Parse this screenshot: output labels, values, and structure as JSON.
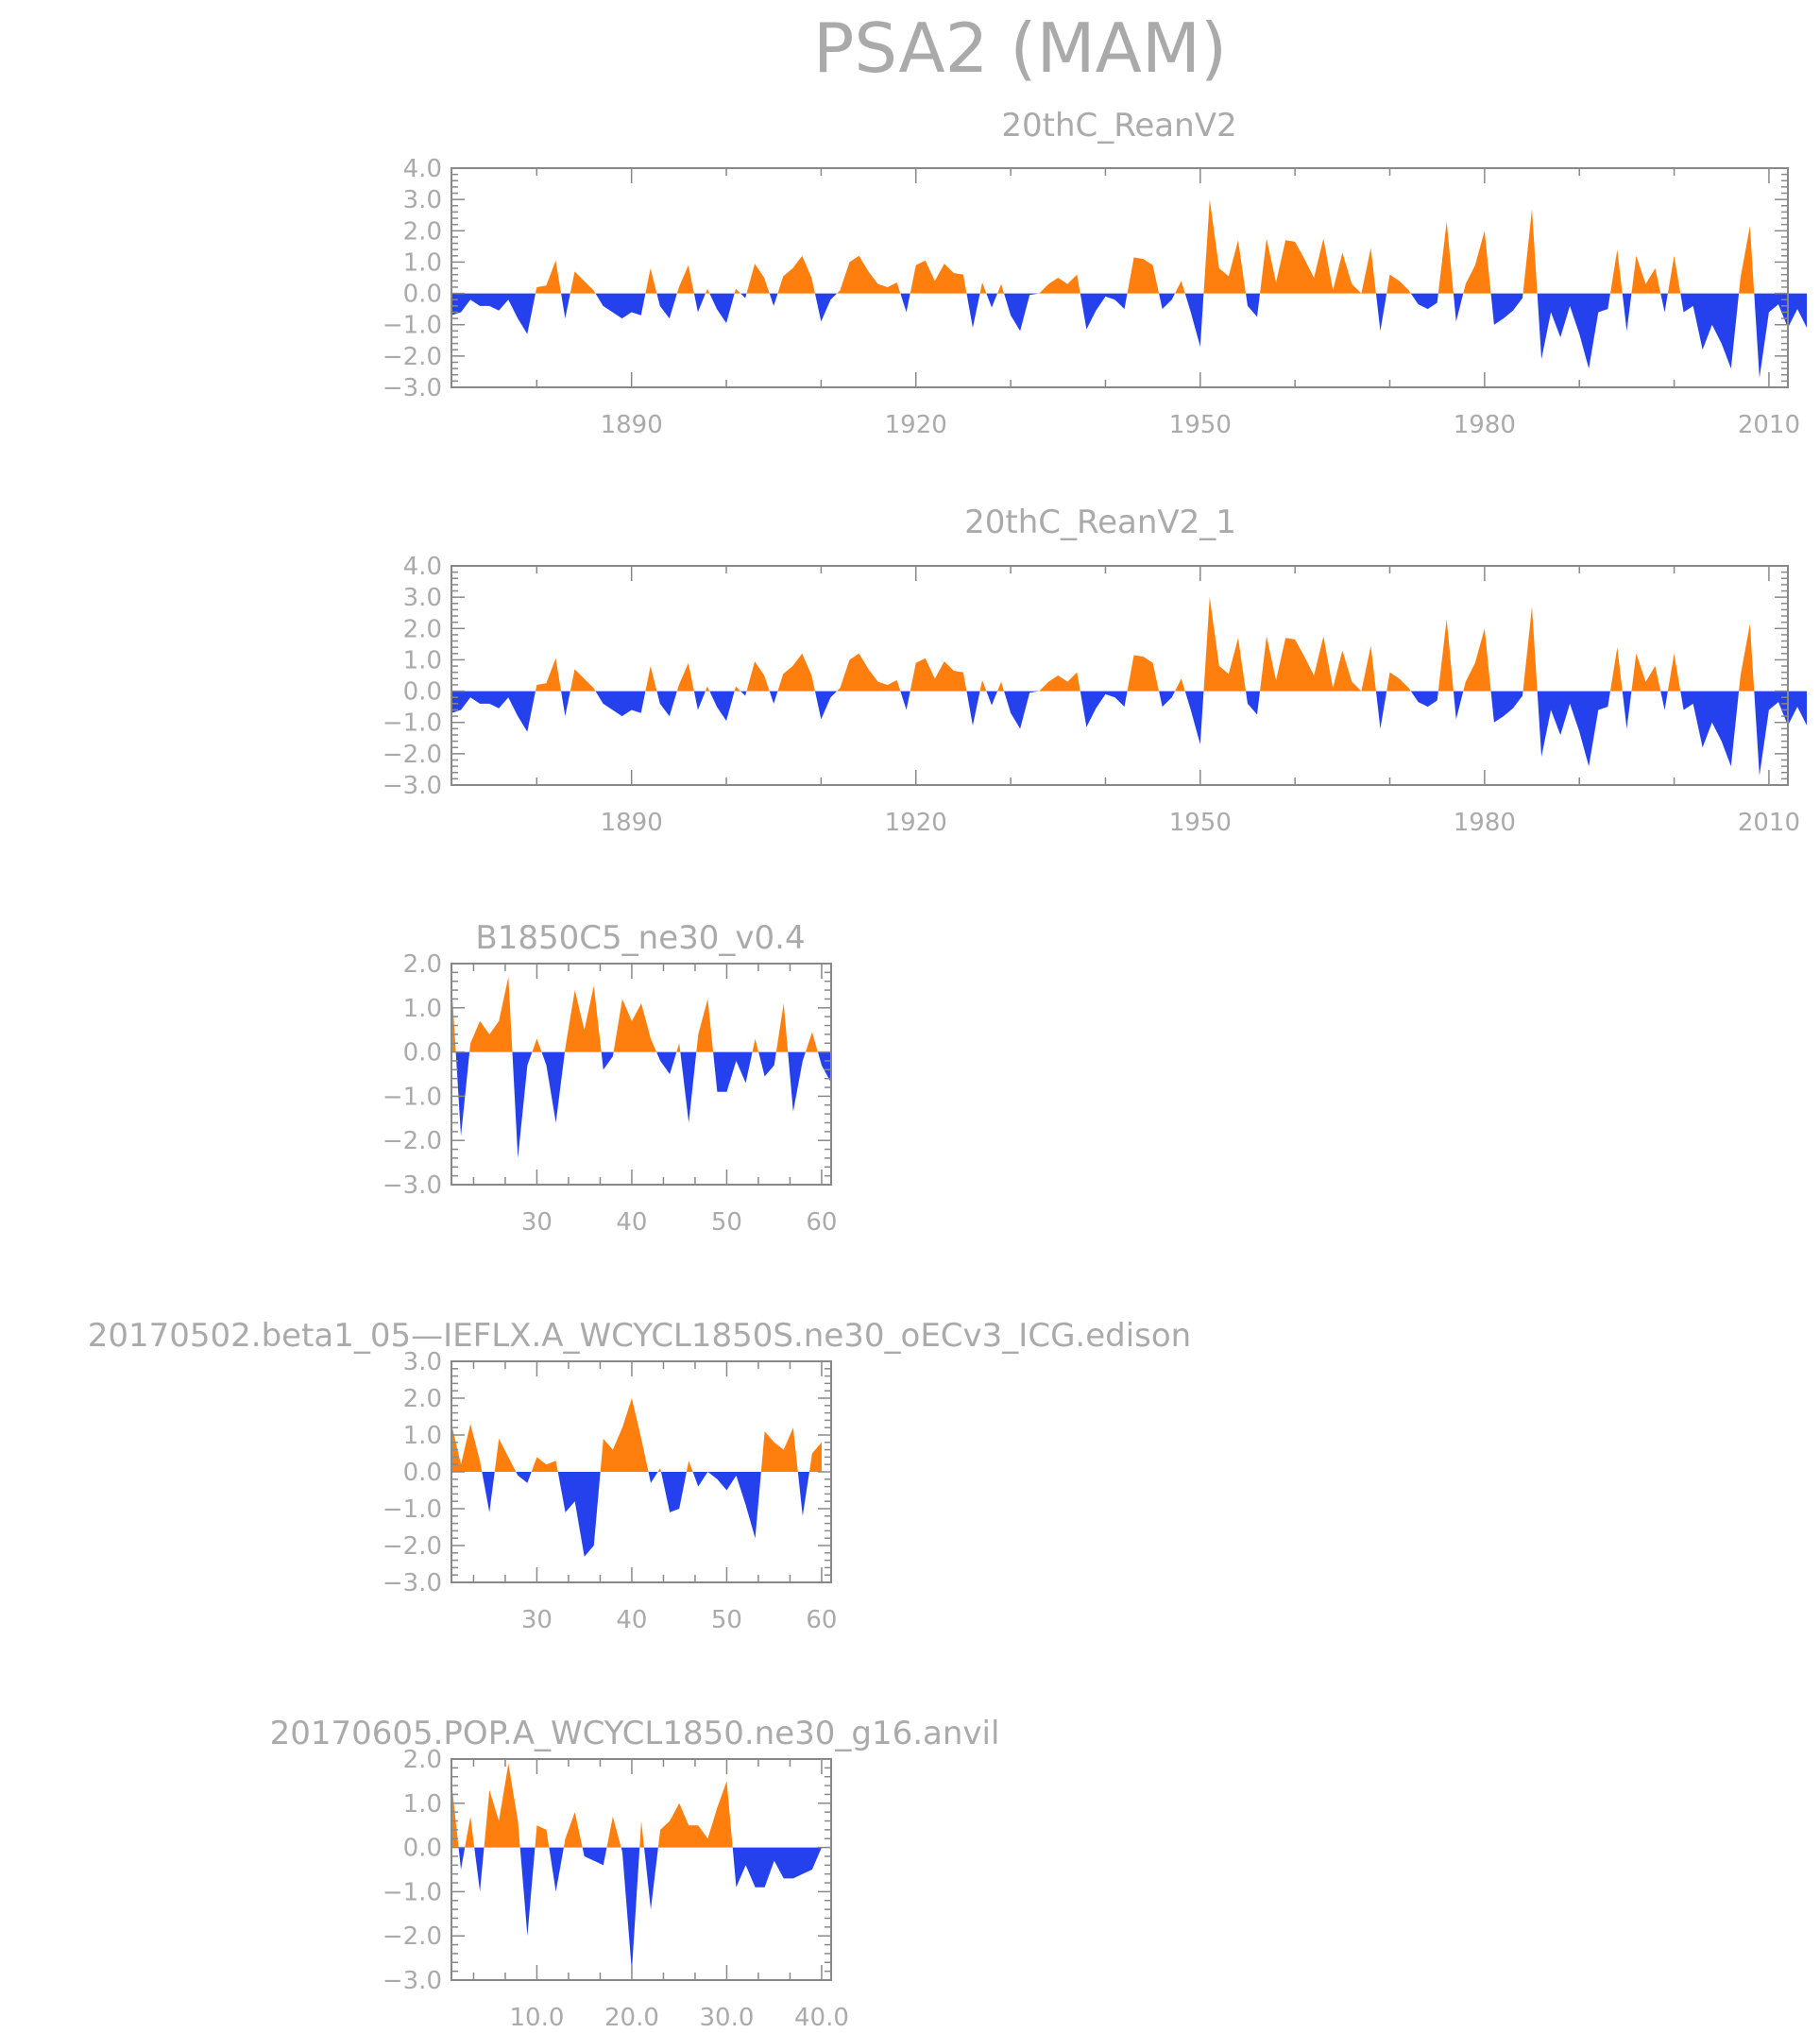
{
  "figure_title": "PSA2 (MAM)",
  "colors": {
    "positive": "#ff7f0e",
    "negative": "#2541ee",
    "axis": "#888888",
    "text": "#aaaaaa"
  },
  "chart_data": [
    {
      "type": "area",
      "title": "20thC_ReanV2",
      "xlabel": "",
      "ylabel": "",
      "xlim": [
        1871,
        2012
      ],
      "ylim": [
        -3.0,
        4.0
      ],
      "xticks": [
        1890,
        1920,
        1950,
        1980,
        2010
      ],
      "xtick_labels": [
        "1890",
        "1920",
        "1950",
        "1980",
        "2010"
      ],
      "yticks": [
        4.0,
        3.0,
        2.0,
        1.0,
        0.0,
        -1.0,
        -2.0,
        -3.0
      ],
      "ytick_labels": [
        "4.0",
        "3.0",
        "2.0",
        "1.0",
        "0.0",
        "−1.0",
        "−2.0",
        "−3.0"
      ],
      "x_start": 1871,
      "values": [
        -0.7,
        -0.6,
        -0.2,
        -0.4,
        -0.4,
        -0.55,
        -0.2,
        -0.8,
        -1.3,
        0.2,
        0.25,
        1.05,
        -0.8,
        0.7,
        0.4,
        0.1,
        -0.4,
        -0.6,
        -0.8,
        -0.6,
        -0.7,
        0.8,
        -0.4,
        -0.8,
        0.2,
        0.9,
        -0.6,
        0.15,
        -0.5,
        -0.95,
        0.15,
        -0.15,
        0.95,
        0.5,
        -0.4,
        0.55,
        0.8,
        1.2,
        0.5,
        -0.9,
        -0.2,
        0.1,
        1.0,
        1.2,
        0.7,
        0.3,
        0.2,
        0.35,
        -0.6,
        0.9,
        1.05,
        0.4,
        0.95,
        0.65,
        0.6,
        -1.1,
        0.35,
        -0.45,
        0.3,
        -0.7,
        -1.2,
        -0.05,
        0.0,
        0.3,
        0.5,
        0.3,
        0.6,
        -1.15,
        -0.55,
        -0.1,
        -0.2,
        -0.5,
        1.15,
        1.1,
        0.9,
        -0.5,
        -0.2,
        0.4,
        -0.6,
        -1.7,
        3.0,
        0.8,
        0.55,
        1.7,
        -0.4,
        -0.75,
        1.75,
        0.35,
        1.7,
        1.65,
        1.1,
        0.5,
        1.75,
        0.1,
        1.3,
        0.3,
        0.0,
        1.45,
        -1.2,
        0.6,
        0.4,
        0.1,
        -0.35,
        -0.5,
        -0.3,
        2.3,
        -0.9,
        0.3,
        0.9,
        2.0,
        -1.0,
        -0.8,
        -0.55,
        -0.15,
        2.7,
        -2.1,
        -0.6,
        -1.4,
        -0.4,
        -1.3,
        -2.4,
        -0.6,
        -0.5,
        1.4,
        -1.2,
        1.2,
        0.3,
        0.8,
        -0.6,
        1.2,
        -0.6,
        -0.4,
        -1.8,
        -1.0,
        -1.6,
        -2.4,
        0.5,
        2.15,
        -2.7,
        -0.6,
        -0.35,
        -1.1,
        -0.5,
        -1.1
      ]
    },
    {
      "type": "area",
      "title": "20thC_ReanV2_1",
      "xlabel": "",
      "ylabel": "",
      "xlim": [
        1871,
        2012
      ],
      "ylim": [
        -3.0,
        4.0
      ],
      "xticks": [
        1890,
        1920,
        1950,
        1980,
        2010
      ],
      "xtick_labels": [
        "1890",
        "1920",
        "1950",
        "1980",
        "2010"
      ],
      "yticks": [
        4.0,
        3.0,
        2.0,
        1.0,
        0.0,
        -1.0,
        -2.0,
        -3.0
      ],
      "ytick_labels": [
        "4.0",
        "3.0",
        "2.0",
        "1.0",
        "0.0",
        "−1.0",
        "−2.0",
        "−3.0"
      ],
      "x_start": 1871,
      "values": [
        -0.7,
        -0.6,
        -0.2,
        -0.4,
        -0.4,
        -0.55,
        -0.2,
        -0.8,
        -1.3,
        0.2,
        0.25,
        1.05,
        -0.8,
        0.7,
        0.4,
        0.1,
        -0.4,
        -0.6,
        -0.8,
        -0.6,
        -0.7,
        0.8,
        -0.4,
        -0.8,
        0.2,
        0.9,
        -0.6,
        0.15,
        -0.5,
        -0.95,
        0.15,
        -0.15,
        0.95,
        0.5,
        -0.4,
        0.55,
        0.8,
        1.2,
        0.5,
        -0.9,
        -0.2,
        0.1,
        1.0,
        1.2,
        0.7,
        0.3,
        0.2,
        0.35,
        -0.6,
        0.9,
        1.05,
        0.4,
        0.95,
        0.65,
        0.6,
        -1.1,
        0.35,
        -0.45,
        0.3,
        -0.7,
        -1.2,
        -0.05,
        0.0,
        0.3,
        0.5,
        0.3,
        0.6,
        -1.15,
        -0.55,
        -0.1,
        -0.2,
        -0.5,
        1.15,
        1.1,
        0.9,
        -0.5,
        -0.2,
        0.4,
        -0.6,
        -1.7,
        3.0,
        0.8,
        0.55,
        1.7,
        -0.4,
        -0.75,
        1.75,
        0.35,
        1.7,
        1.65,
        1.1,
        0.5,
        1.75,
        0.1,
        1.3,
        0.3,
        0.0,
        1.45,
        -1.2,
        0.6,
        0.4,
        0.1,
        -0.35,
        -0.5,
        -0.3,
        2.3,
        -0.9,
        0.3,
        0.9,
        2.0,
        -1.0,
        -0.8,
        -0.55,
        -0.15,
        2.7,
        -2.1,
        -0.6,
        -1.4,
        -0.4,
        -1.3,
        -2.4,
        -0.6,
        -0.5,
        1.4,
        -1.2,
        1.2,
        0.3,
        0.8,
        -0.6,
        1.2,
        -0.6,
        -0.4,
        -1.8,
        -1.0,
        -1.6,
        -2.4,
        0.5,
        2.15,
        -2.7,
        -0.6,
        -0.35,
        -1.1,
        -0.5,
        -1.1
      ]
    },
    {
      "type": "area",
      "title": "B1850C5_ne30_v0.4",
      "xlabel": "",
      "ylabel": "",
      "xlim": [
        21,
        61
      ],
      "ylim": [
        -3.0,
        2.0
      ],
      "xticks": [
        30,
        40,
        50,
        60
      ],
      "xtick_labels": [
        "30",
        "40",
        "50",
        "60"
      ],
      "yticks": [
        2.0,
        1.0,
        0.0,
        -1.0,
        -2.0,
        -3.0
      ],
      "ytick_labels": [
        "2.0",
        "1.0",
        "0.0",
        "−1.0",
        "−2.0",
        "−3.0"
      ],
      "x_start": 21,
      "values": [
        1.6,
        -1.9,
        0.2,
        0.7,
        0.4,
        0.7,
        1.7,
        -2.4,
        -0.3,
        0.3,
        -0.3,
        -1.6,
        0.1,
        1.4,
        0.5,
        1.5,
        -0.4,
        -0.1,
        1.2,
        0.7,
        1.1,
        0.3,
        -0.2,
        -0.5,
        0.2,
        -1.6,
        0.4,
        1.2,
        -0.9,
        -0.9,
        -0.2,
        -0.7,
        0.3,
        -0.55,
        -0.3,
        1.1,
        -1.35,
        -0.2,
        0.45,
        -0.3,
        -0.7
      ]
    },
    {
      "type": "area",
      "title": "20170502.beta1_05—IEFLX.A_WCYCL1850S.ne30_oECv3_ICG.edison",
      "xlabel": "",
      "ylabel": "",
      "xlim": [
        21,
        61
      ],
      "ylim": [
        -3.0,
        3.0
      ],
      "xticks": [
        30,
        40,
        50,
        60
      ],
      "xtick_labels": [
        "30",
        "40",
        "50",
        "60"
      ],
      "yticks": [
        3.0,
        2.0,
        1.0,
        0.0,
        -1.0,
        -2.0,
        -3.0
      ],
      "ytick_labels": [
        "3.0",
        "2.0",
        "1.0",
        "0.0",
        "−1.0",
        "−2.0",
        "−3.0"
      ],
      "x_start": 21,
      "values": [
        1.3,
        0.2,
        1.3,
        0.3,
        -1.1,
        0.9,
        0.4,
        -0.1,
        -0.3,
        0.4,
        0.2,
        0.3,
        -1.1,
        -0.8,
        -2.3,
        -2.0,
        0.9,
        0.6,
        1.2,
        2.0,
        0.9,
        -0.3,
        0.1,
        -1.1,
        -1.0,
        0.3,
        -0.4,
        0.0,
        -0.2,
        -0.5,
        -0.1,
        -0.9,
        -1.8,
        1.1,
        0.8,
        0.6,
        1.2,
        -1.2,
        0.5,
        0.8
      ]
    },
    {
      "type": "area",
      "title": "20170605.POP.A_WCYCL1850.ne30_g16.anvil",
      "xlabel": "",
      "ylabel": "",
      "xlim": [
        1,
        41
      ],
      "ylim": [
        -3.0,
        2.0
      ],
      "xticks": [
        10,
        20,
        30,
        40
      ],
      "xtick_labels": [
        "10.0",
        "20.0",
        "30.0",
        "40.0"
      ],
      "yticks": [
        2.0,
        1.0,
        0.0,
        -1.0,
        -2.0,
        -3.0
      ],
      "ytick_labels": [
        "2.0",
        "1.0",
        "0.0",
        "−1.0",
        "−2.0",
        "−3.0"
      ],
      "x_start": 1,
      "values": [
        1.5,
        -0.5,
        0.7,
        -1.0,
        1.3,
        0.6,
        1.9,
        0.6,
        -2.0,
        0.5,
        0.4,
        -1.0,
        0.2,
        0.8,
        -0.2,
        -0.3,
        -0.4,
        0.7,
        -0.1,
        -2.8,
        0.6,
        -1.4,
        0.4,
        0.6,
        1.0,
        0.5,
        0.5,
        0.2,
        0.9,
        1.5,
        -0.9,
        -0.4,
        -0.9,
        -0.9,
        -0.3,
        -0.7,
        -0.7,
        -0.6,
        -0.5,
        0.0
      ]
    }
  ]
}
